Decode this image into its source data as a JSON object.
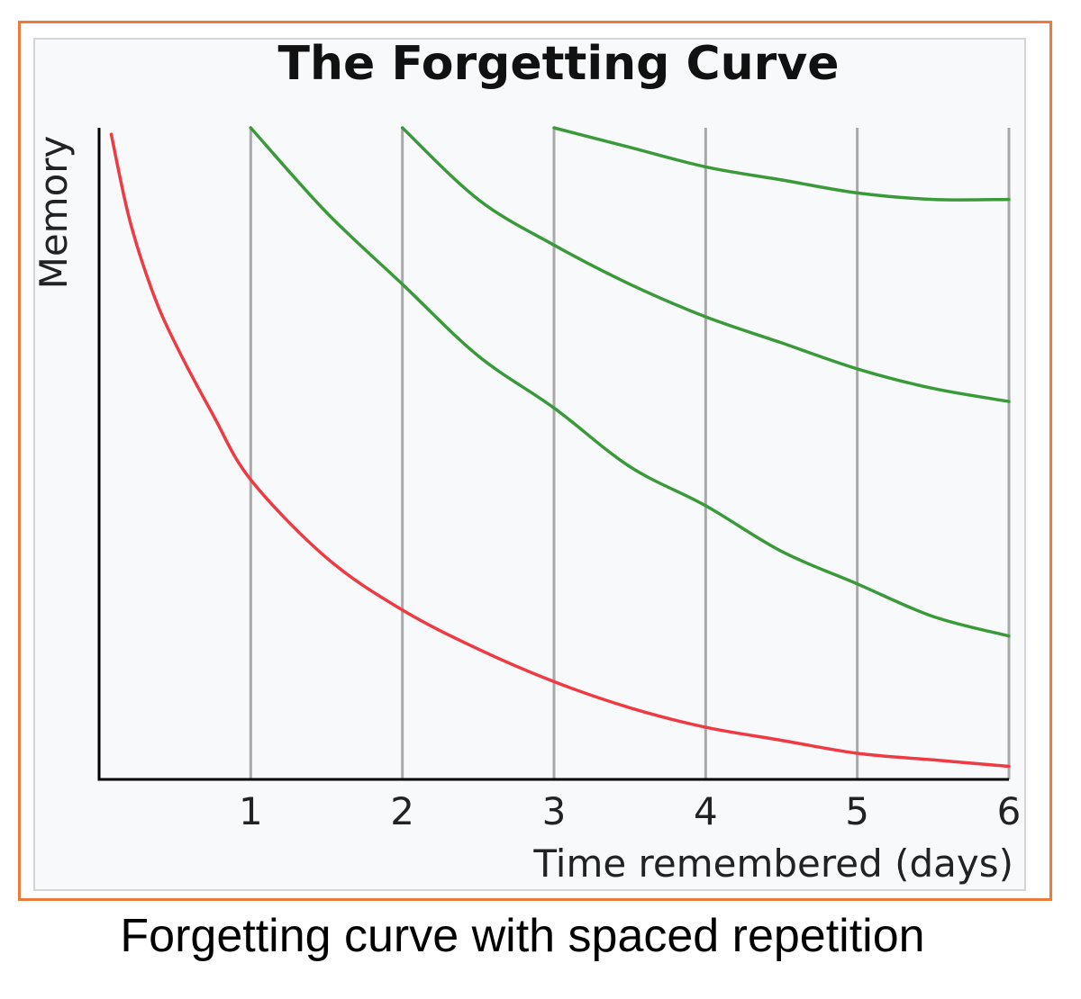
{
  "caption": "Forgetting curve with spaced repetition",
  "chart_data": {
    "type": "line",
    "title": "The Forgetting Curve",
    "xlabel": "Time remembered (days)",
    "ylabel": "Memory",
    "xlim": [
      0,
      6
    ],
    "ylim": [
      0,
      1
    ],
    "x_ticks": [
      1,
      2,
      3,
      4,
      5,
      6
    ],
    "gridlines_x": [
      1,
      2,
      3,
      4,
      5,
      6
    ],
    "grid": "vertical only",
    "legend": "none",
    "colors": {
      "forgetting": "#ee3a43",
      "review": "#3a9a3a",
      "grid": "#a9a9a9",
      "axis": "#000000",
      "frame": "#ea7b3a"
    },
    "series": [
      {
        "color_key": "forgetting",
        "x": [
          0.08,
          0.2,
          0.35,
          0.5,
          0.75,
          1.0,
          1.5,
          2.0,
          2.5,
          3.0,
          3.5,
          4.0,
          4.5,
          5.0,
          5.5,
          6.0
        ],
        "values": [
          0.99,
          0.86,
          0.75,
          0.67,
          0.56,
          0.46,
          0.34,
          0.26,
          0.2,
          0.15,
          0.11,
          0.08,
          0.06,
          0.04,
          0.03,
          0.02
        ]
      },
      {
        "color_key": "review",
        "x": [
          1.0,
          1.5,
          2.0,
          2.5,
          3.0,
          3.5,
          4.0,
          4.5,
          5.0,
          5.5,
          6.0
        ],
        "values": [
          1.0,
          0.87,
          0.76,
          0.65,
          0.57,
          0.48,
          0.42,
          0.35,
          0.3,
          0.25,
          0.22
        ]
      },
      {
        "color_key": "review",
        "x": [
          2.0,
          2.5,
          3.0,
          3.5,
          4.0,
          4.5,
          5.0,
          5.5,
          6.0
        ],
        "values": [
          1.0,
          0.89,
          0.82,
          0.76,
          0.71,
          0.67,
          0.63,
          0.6,
          0.58
        ]
      },
      {
        "color_key": "review",
        "x": [
          3.0,
          3.5,
          4.0,
          4.5,
          5.0,
          5.5,
          6.0
        ],
        "values": [
          1.0,
          0.97,
          0.94,
          0.92,
          0.9,
          0.89,
          0.89
        ]
      }
    ]
  }
}
